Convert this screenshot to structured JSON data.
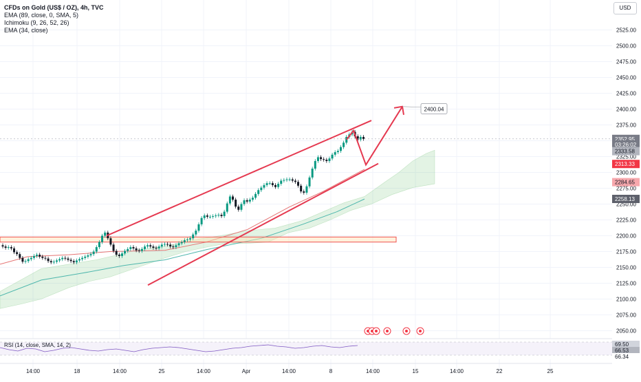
{
  "legend": {
    "symbol": "CFDs on Gold (US$ / OZ), 4h, TVC",
    "indicators": [
      "EMA (89, close, 0, SMA, 5)",
      "Ichimoku (9, 26, 52, 26)",
      "EMA (34, close)"
    ]
  },
  "currency": "USD",
  "rsi_label": "RSI (14, close, SMA, 14, 2)",
  "chart_data": {
    "type": "candlestick",
    "title": "CFDs on Gold (US$ / OZ), 4h, TVC",
    "ylim": [
      2040,
      2545
    ],
    "y_ticks": [
      2050,
      2075,
      2100,
      2125,
      2150,
      2175,
      2200,
      2225,
      2250,
      2275,
      2300,
      2325,
      2350,
      2375,
      2400,
      2425,
      2450,
      2475,
      2500,
      2525
    ],
    "y_tick_labels": [
      "2050.00",
      "2075.00",
      "2100.00",
      "2125.00",
      "2150.00",
      "2175.00",
      "2200.00",
      "2225.00",
      "2250.00",
      "2275.00",
      "2300.00",
      "2325.00",
      "2350.00",
      "2375.00",
      "2400.00",
      "2425.00",
      "2450.00",
      "2475.00",
      "2500.00",
      "2525.00"
    ],
    "x_labels": [
      "14:00",
      "18",
      "14:00",
      "25",
      "14:00",
      "Apr",
      "14:00",
      "8",
      "14:00",
      "15",
      "14:00",
      "22",
      "25"
    ],
    "price_labels": [
      {
        "text": "2352.95",
        "value": 2352.95,
        "color": "#787b86"
      },
      {
        "text": "03:26:02",
        "value": 2344,
        "color": "#787b86"
      },
      {
        "text": "2333.58",
        "value": 2333.58,
        "color": "#b2b5be"
      },
      {
        "text": "2313.33",
        "value": 2313.33,
        "color": "#f23645"
      },
      {
        "text": "2284.65",
        "value": 2284.65,
        "color": "#f7a8ad"
      },
      {
        "text": "2258.13",
        "value": 2258.13,
        "color": "#5d606b"
      }
    ],
    "target_label": "2400.04",
    "support_zone": [
      2190,
      2198
    ],
    "rsi": {
      "ylim": [
        38,
        72
      ],
      "labels": [
        "69.50",
        "66.53",
        "66.34"
      ],
      "last": 66.53
    },
    "candles_close": [
      2183,
      2181,
      2182,
      2180,
      2174,
      2171,
      2165,
      2159,
      2160,
      2163,
      2165,
      2168,
      2170,
      2167,
      2165,
      2164,
      2160,
      2158,
      2159,
      2161,
      2163,
      2165,
      2164,
      2162,
      2160,
      2158,
      2161,
      2163,
      2165,
      2167,
      2169,
      2171,
      2175,
      2182,
      2190,
      2200,
      2205,
      2196,
      2186,
      2176,
      2170,
      2168,
      2172,
      2176,
      2179,
      2182,
      2180,
      2177,
      2176,
      2179,
      2183,
      2185,
      2183,
      2181,
      2180,
      2183,
      2186,
      2187,
      2186,
      2183,
      2182,
      2185,
      2188,
      2190,
      2193,
      2194,
      2196,
      2202,
      2208,
      2218,
      2228,
      2232,
      2230,
      2230,
      2231,
      2232,
      2233,
      2231,
      2238,
      2251,
      2262,
      2257,
      2246,
      2241,
      2250,
      2256,
      2254,
      2257,
      2260,
      2266,
      2272,
      2276,
      2280,
      2283,
      2283,
      2280,
      2277,
      2282,
      2287,
      2288,
      2289,
      2289,
      2287,
      2285,
      2279,
      2270,
      2268,
      2278,
      2292,
      2306,
      2318,
      2324,
      2321,
      2320,
      2318,
      2322,
      2328,
      2332,
      2334,
      2340,
      2347,
      2356,
      2360,
      2364,
      2357,
      2352,
      2356,
      2353
    ],
    "ema34_points": [
      [
        0,
        2155
      ],
      [
        40,
        2167
      ],
      [
        100,
        2170
      ],
      [
        160,
        2175
      ],
      [
        240,
        2177
      ],
      [
        300,
        2190
      ],
      [
        360,
        2210
      ],
      [
        420,
        2245
      ],
      [
        470,
        2270
      ],
      [
        530,
        2305
      ]
    ],
    "ema89_points": [
      [
        0,
        2105
      ],
      [
        60,
        2130
      ],
      [
        120,
        2141
      ],
      [
        180,
        2153
      ],
      [
        240,
        2162
      ],
      [
        300,
        2178
      ],
      [
        380,
        2196
      ],
      [
        440,
        2218
      ],
      [
        490,
        2238
      ],
      [
        530,
        2258
      ]
    ],
    "upper_channel": [
      [
        155,
        2200
      ],
      [
        540,
        2382
      ]
    ],
    "lower_channel": [
      [
        215,
        2122
      ],
      [
        550,
        2314
      ]
    ],
    "projection": [
      [
        504,
        2352
      ],
      [
        514,
        2366
      ],
      [
        532,
        2312
      ],
      [
        585,
        2404
      ]
    ]
  }
}
